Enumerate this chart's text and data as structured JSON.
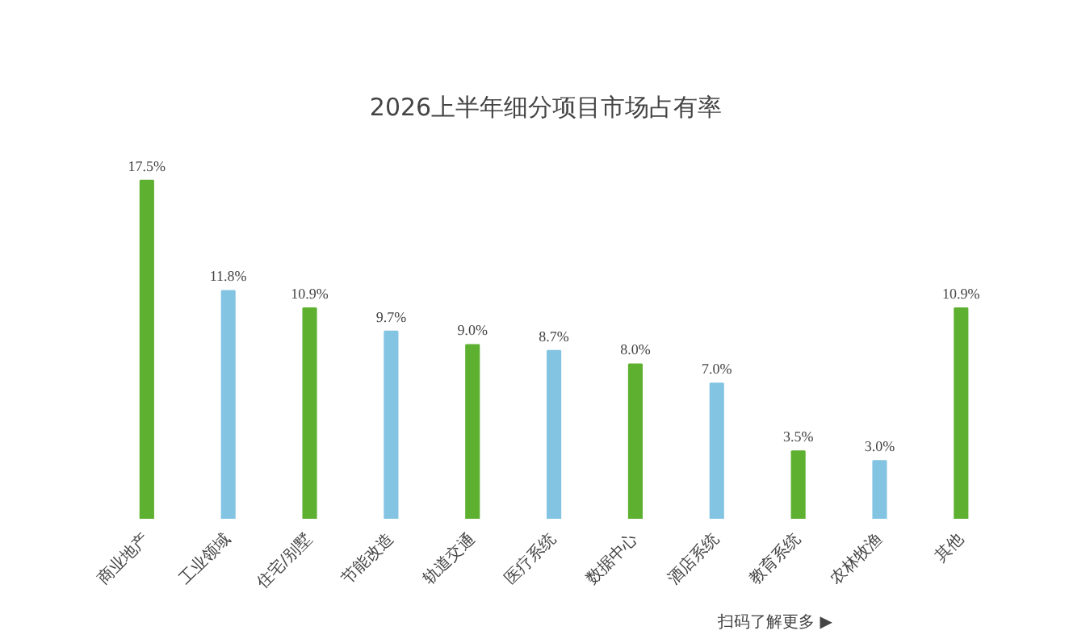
{
  "chart_data": {
    "type": "bar",
    "title": "2026上半年细分项目市场占有率",
    "categories": [
      "商业地产",
      "工业领域",
      "住宅/别墅",
      "节能改造",
      "轨道交通",
      "医疗系统",
      "数据中心",
      "酒店系统",
      "教育系统",
      "农林牧渔",
      "其他"
    ],
    "values": [
      17.5,
      11.8,
      10.9,
      9.7,
      9.0,
      8.7,
      8.0,
      7.0,
      3.5,
      3.0,
      10.9
    ],
    "colors": [
      "#5eb031",
      "#84c4e3",
      "#5eb031",
      "#84c4e3",
      "#5eb031",
      "#84c4e3",
      "#5eb031",
      "#84c4e3",
      "#5eb031",
      "#84c4e3",
      "#5eb031"
    ],
    "value_labels": [
      "17.5%",
      "11.8%",
      "10.9%",
      "9.7%",
      "9.0%",
      "8.7%",
      "8.0%",
      "7.0%",
      "3.5%",
      "3.0%",
      "10.9%"
    ],
    "annotations": [
      "扫码了解更多 ▶"
    ],
    "grid": false
  }
}
